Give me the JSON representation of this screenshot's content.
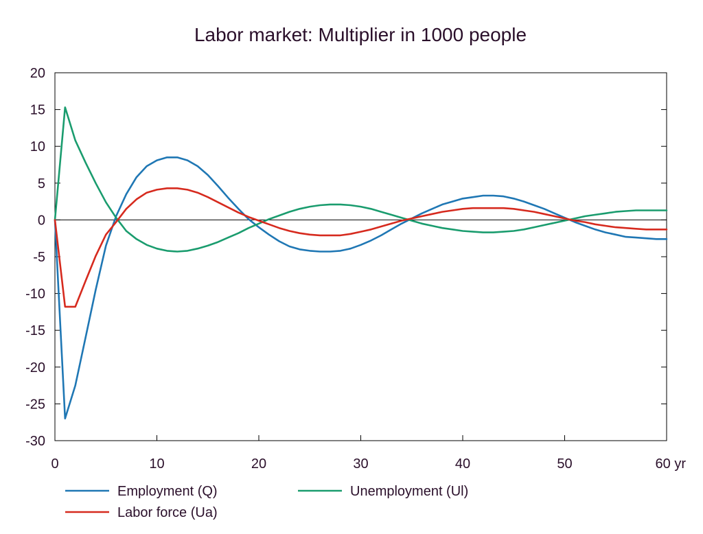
{
  "chart_data": {
    "type": "line",
    "title": "Labor market: Multiplier in 1000 people",
    "x_unit": "yr",
    "xlim": [
      0,
      60
    ],
    "ylim": [
      -30,
      20
    ],
    "x_ticks": [
      0,
      10,
      20,
      30,
      40,
      50,
      60
    ],
    "x_tick_labels": [
      "0",
      "10",
      "20",
      "30",
      "40",
      "50",
      "60 yr"
    ],
    "y_ticks": [
      20,
      15,
      10,
      5,
      0,
      -5,
      -10,
      -15,
      -20,
      -25,
      -30
    ],
    "y_tick_labels": [
      "20",
      "15",
      "10",
      "5",
      "0",
      "-5",
      "-10",
      "-15",
      "-20",
      "-25",
      "-30"
    ],
    "zero_line": true,
    "grid": false,
    "legend_position": "bottom",
    "series": [
      {
        "name": "Employment (Q)",
        "color": "#1f77b4",
        "x": [
          0,
          1,
          2,
          3,
          4,
          5,
          6,
          7,
          8,
          9,
          10,
          11,
          12,
          13,
          14,
          15,
          16,
          17,
          18,
          19,
          20,
          21,
          22,
          23,
          24,
          25,
          26,
          27,
          28,
          29,
          30,
          31,
          32,
          33,
          34,
          35,
          36,
          37,
          38,
          39,
          40,
          41,
          42,
          43,
          44,
          45,
          46,
          47,
          48,
          49,
          50,
          51,
          52,
          53,
          54,
          55,
          56,
          57,
          58,
          59,
          60
        ],
        "y": [
          0,
          -27,
          -22.5,
          -16,
          -9.5,
          -3.5,
          0.5,
          3.5,
          5.8,
          7.3,
          8.1,
          8.5,
          8.5,
          8.1,
          7.3,
          6.1,
          4.6,
          3.0,
          1.5,
          0.1,
          -1.0,
          -2.0,
          -2.9,
          -3.6,
          -4.0,
          -4.2,
          -4.3,
          -4.3,
          -4.2,
          -3.9,
          -3.4,
          -2.8,
          -2.1,
          -1.3,
          -0.5,
          0.2,
          0.9,
          1.5,
          2.1,
          2.5,
          2.9,
          3.1,
          3.3,
          3.3,
          3.2,
          2.9,
          2.5,
          2.0,
          1.5,
          0.9,
          0.3,
          -0.3,
          -0.8,
          -1.3,
          -1.7,
          -2.0,
          -2.3,
          -2.4,
          -2.5,
          -2.6,
          -2.6
        ]
      },
      {
        "name": "Unemployment (Ul)",
        "color": "#1a9c6e",
        "x": [
          0,
          1,
          2,
          3,
          4,
          5,
          6,
          7,
          8,
          9,
          10,
          11,
          12,
          13,
          14,
          15,
          16,
          17,
          18,
          19,
          20,
          21,
          22,
          23,
          24,
          25,
          26,
          27,
          28,
          29,
          30,
          31,
          32,
          33,
          34,
          35,
          36,
          37,
          38,
          39,
          40,
          41,
          42,
          43,
          44,
          45,
          46,
          47,
          48,
          49,
          50,
          51,
          52,
          53,
          54,
          55,
          56,
          57,
          58,
          59,
          60
        ],
        "y": [
          0,
          15.3,
          10.8,
          7.8,
          5.0,
          2.4,
          0.3,
          -1.5,
          -2.6,
          -3.4,
          -3.9,
          -4.2,
          -4.3,
          -4.2,
          -3.9,
          -3.5,
          -3.0,
          -2.4,
          -1.8,
          -1.1,
          -0.5,
          0.1,
          0.6,
          1.1,
          1.5,
          1.8,
          2.0,
          2.1,
          2.1,
          2.0,
          1.8,
          1.5,
          1.1,
          0.7,
          0.3,
          -0.1,
          -0.5,
          -0.8,
          -1.1,
          -1.3,
          -1.5,
          -1.6,
          -1.7,
          -1.7,
          -1.6,
          -1.5,
          -1.3,
          -1.0,
          -0.7,
          -0.4,
          -0.1,
          0.2,
          0.5,
          0.7,
          0.9,
          1.1,
          1.2,
          1.3,
          1.3,
          1.3,
          1.3
        ]
      },
      {
        "name": "Labor force (Ua)",
        "color": "#d62a1e",
        "x": [
          0,
          1,
          2,
          3,
          4,
          5,
          6,
          7,
          8,
          9,
          10,
          11,
          12,
          13,
          14,
          15,
          16,
          17,
          18,
          19,
          20,
          21,
          22,
          23,
          24,
          25,
          26,
          27,
          28,
          29,
          30,
          31,
          32,
          33,
          34,
          35,
          36,
          37,
          38,
          39,
          40,
          41,
          42,
          43,
          44,
          45,
          46,
          47,
          48,
          49,
          50,
          51,
          52,
          53,
          54,
          55,
          56,
          57,
          58,
          59,
          60
        ],
        "y": [
          0,
          -11.8,
          -11.8,
          -8.3,
          -4.9,
          -2.0,
          -0.3,
          1.5,
          2.8,
          3.7,
          4.1,
          4.3,
          4.3,
          4.1,
          3.7,
          3.1,
          2.4,
          1.7,
          1.0,
          0.4,
          -0.1,
          -0.6,
          -1.1,
          -1.5,
          -1.8,
          -2.0,
          -2.1,
          -2.1,
          -2.1,
          -1.9,
          -1.6,
          -1.3,
          -0.9,
          -0.5,
          -0.1,
          0.2,
          0.5,
          0.8,
          1.1,
          1.3,
          1.5,
          1.6,
          1.6,
          1.6,
          1.6,
          1.5,
          1.3,
          1.1,
          0.8,
          0.5,
          0.2,
          -0.1,
          -0.3,
          -0.6,
          -0.8,
          -1.0,
          -1.1,
          -1.2,
          -1.3,
          -1.3,
          -1.3
        ]
      }
    ]
  }
}
